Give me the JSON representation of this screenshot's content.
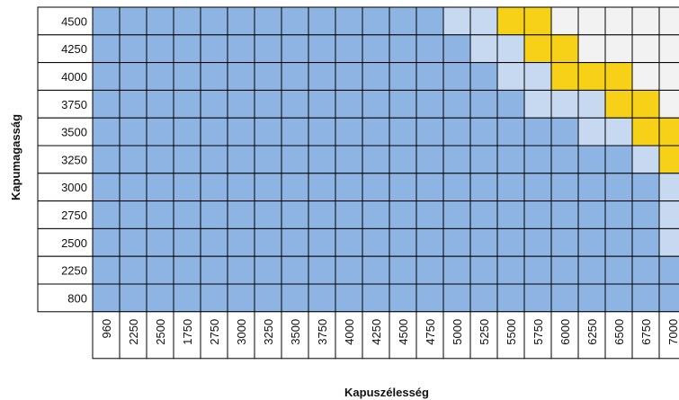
{
  "y_axis_label": "Kapumagasság",
  "x_axis_label": "Kapuszélesség",
  "columns": [
    "960",
    "2250",
    "2500",
    "1750",
    "2750",
    "3000",
    "3250",
    "3500",
    "3750",
    "4000",
    "4250",
    "4500",
    "4750",
    "5000",
    "5250",
    "5500",
    "5750",
    "6000",
    "6250",
    "6500",
    "6750",
    "7000"
  ],
  "rows": [
    {
      "label": "4500",
      "cells": [
        "#8db4e2",
        "#8db4e2",
        "#8db4e2",
        "#8db4e2",
        "#8db4e2",
        "#8db4e2",
        "#8db4e2",
        "#8db4e2",
        "#8db4e2",
        "#8db4e2",
        "#8db4e2",
        "#8db4e2",
        "#8db4e2",
        "#c6d9f0",
        "#c6d9f0",
        "#f7d117",
        "#f7d117",
        "#f2f2f2",
        "#f2f2f2",
        "#f2f2f2",
        "#f2f2f2",
        "#f2f2f2"
      ]
    },
    {
      "label": "4250",
      "cells": [
        "#8db4e2",
        "#8db4e2",
        "#8db4e2",
        "#8db4e2",
        "#8db4e2",
        "#8db4e2",
        "#8db4e2",
        "#8db4e2",
        "#8db4e2",
        "#8db4e2",
        "#8db4e2",
        "#8db4e2",
        "#8db4e2",
        "#8db4e2",
        "#c6d9f0",
        "#c6d9f0",
        "#f7d117",
        "#f7d117",
        "#f2f2f2",
        "#f2f2f2",
        "#f2f2f2",
        "#f2f2f2"
      ]
    },
    {
      "label": "4000",
      "cells": [
        "#8db4e2",
        "#8db4e2",
        "#8db4e2",
        "#8db4e2",
        "#8db4e2",
        "#8db4e2",
        "#8db4e2",
        "#8db4e2",
        "#8db4e2",
        "#8db4e2",
        "#8db4e2",
        "#8db4e2",
        "#8db4e2",
        "#8db4e2",
        "#8db4e2",
        "#c6d9f0",
        "#c6d9f0",
        "#f7d117",
        "#f7d117",
        "#f7d117",
        "#f2f2f2",
        "#f2f2f2"
      ]
    },
    {
      "label": "3750",
      "cells": [
        "#8db4e2",
        "#8db4e2",
        "#8db4e2",
        "#8db4e2",
        "#8db4e2",
        "#8db4e2",
        "#8db4e2",
        "#8db4e2",
        "#8db4e2",
        "#8db4e2",
        "#8db4e2",
        "#8db4e2",
        "#8db4e2",
        "#8db4e2",
        "#8db4e2",
        "#8db4e2",
        "#c6d9f0",
        "#c6d9f0",
        "#c6d9f0",
        "#f7d117",
        "#f7d117",
        "#f2f2f2"
      ]
    },
    {
      "label": "3500",
      "cells": [
        "#8db4e2",
        "#8db4e2",
        "#8db4e2",
        "#8db4e2",
        "#8db4e2",
        "#8db4e2",
        "#8db4e2",
        "#8db4e2",
        "#8db4e2",
        "#8db4e2",
        "#8db4e2",
        "#8db4e2",
        "#8db4e2",
        "#8db4e2",
        "#8db4e2",
        "#8db4e2",
        "#8db4e2",
        "#8db4e2",
        "#c6d9f0",
        "#c6d9f0",
        "#f7d117",
        "#f7d117"
      ]
    },
    {
      "label": "3250",
      "cells": [
        "#8db4e2",
        "#8db4e2",
        "#8db4e2",
        "#8db4e2",
        "#8db4e2",
        "#8db4e2",
        "#8db4e2",
        "#8db4e2",
        "#8db4e2",
        "#8db4e2",
        "#8db4e2",
        "#8db4e2",
        "#8db4e2",
        "#8db4e2",
        "#8db4e2",
        "#8db4e2",
        "#8db4e2",
        "#8db4e2",
        "#8db4e2",
        "#8db4e2",
        "#c6d9f0",
        "#f7d117"
      ]
    },
    {
      "label": "3000",
      "cells": [
        "#8db4e2",
        "#8db4e2",
        "#8db4e2",
        "#8db4e2",
        "#8db4e2",
        "#8db4e2",
        "#8db4e2",
        "#8db4e2",
        "#8db4e2",
        "#8db4e2",
        "#8db4e2",
        "#8db4e2",
        "#8db4e2",
        "#8db4e2",
        "#8db4e2",
        "#8db4e2",
        "#8db4e2",
        "#8db4e2",
        "#8db4e2",
        "#8db4e2",
        "#8db4e2",
        "#c6d9f0"
      ]
    },
    {
      "label": "2750",
      "cells": [
        "#8db4e2",
        "#8db4e2",
        "#8db4e2",
        "#8db4e2",
        "#8db4e2",
        "#8db4e2",
        "#8db4e2",
        "#8db4e2",
        "#8db4e2",
        "#8db4e2",
        "#8db4e2",
        "#8db4e2",
        "#8db4e2",
        "#8db4e2",
        "#8db4e2",
        "#8db4e2",
        "#8db4e2",
        "#8db4e2",
        "#8db4e2",
        "#8db4e2",
        "#8db4e2",
        "#c6d9f0"
      ]
    },
    {
      "label": "2500",
      "cells": [
        "#8db4e2",
        "#8db4e2",
        "#8db4e2",
        "#8db4e2",
        "#8db4e2",
        "#8db4e2",
        "#8db4e2",
        "#8db4e2",
        "#8db4e2",
        "#8db4e2",
        "#8db4e2",
        "#8db4e2",
        "#8db4e2",
        "#8db4e2",
        "#8db4e2",
        "#8db4e2",
        "#8db4e2",
        "#8db4e2",
        "#8db4e2",
        "#8db4e2",
        "#8db4e2",
        "#c6d9f0"
      ]
    },
    {
      "label": "2250",
      "cells": [
        "#8db4e2",
        "#8db4e2",
        "#8db4e2",
        "#8db4e2",
        "#8db4e2",
        "#8db4e2",
        "#8db4e2",
        "#8db4e2",
        "#8db4e2",
        "#8db4e2",
        "#8db4e2",
        "#8db4e2",
        "#8db4e2",
        "#8db4e2",
        "#8db4e2",
        "#8db4e2",
        "#8db4e2",
        "#8db4e2",
        "#8db4e2",
        "#8db4e2",
        "#8db4e2",
        "#8db4e2"
      ]
    },
    {
      "label": "800",
      "cells": [
        "#8db4e2",
        "#8db4e2",
        "#8db4e2",
        "#8db4e2",
        "#8db4e2",
        "#8db4e2",
        "#8db4e2",
        "#8db4e2",
        "#8db4e2",
        "#8db4e2",
        "#8db4e2",
        "#8db4e2",
        "#8db4e2",
        "#8db4e2",
        "#8db4e2",
        "#8db4e2",
        "#8db4e2",
        "#8db4e2",
        "#8db4e2",
        "#8db4e2",
        "#8db4e2",
        "#8db4e2"
      ]
    }
  ]
}
